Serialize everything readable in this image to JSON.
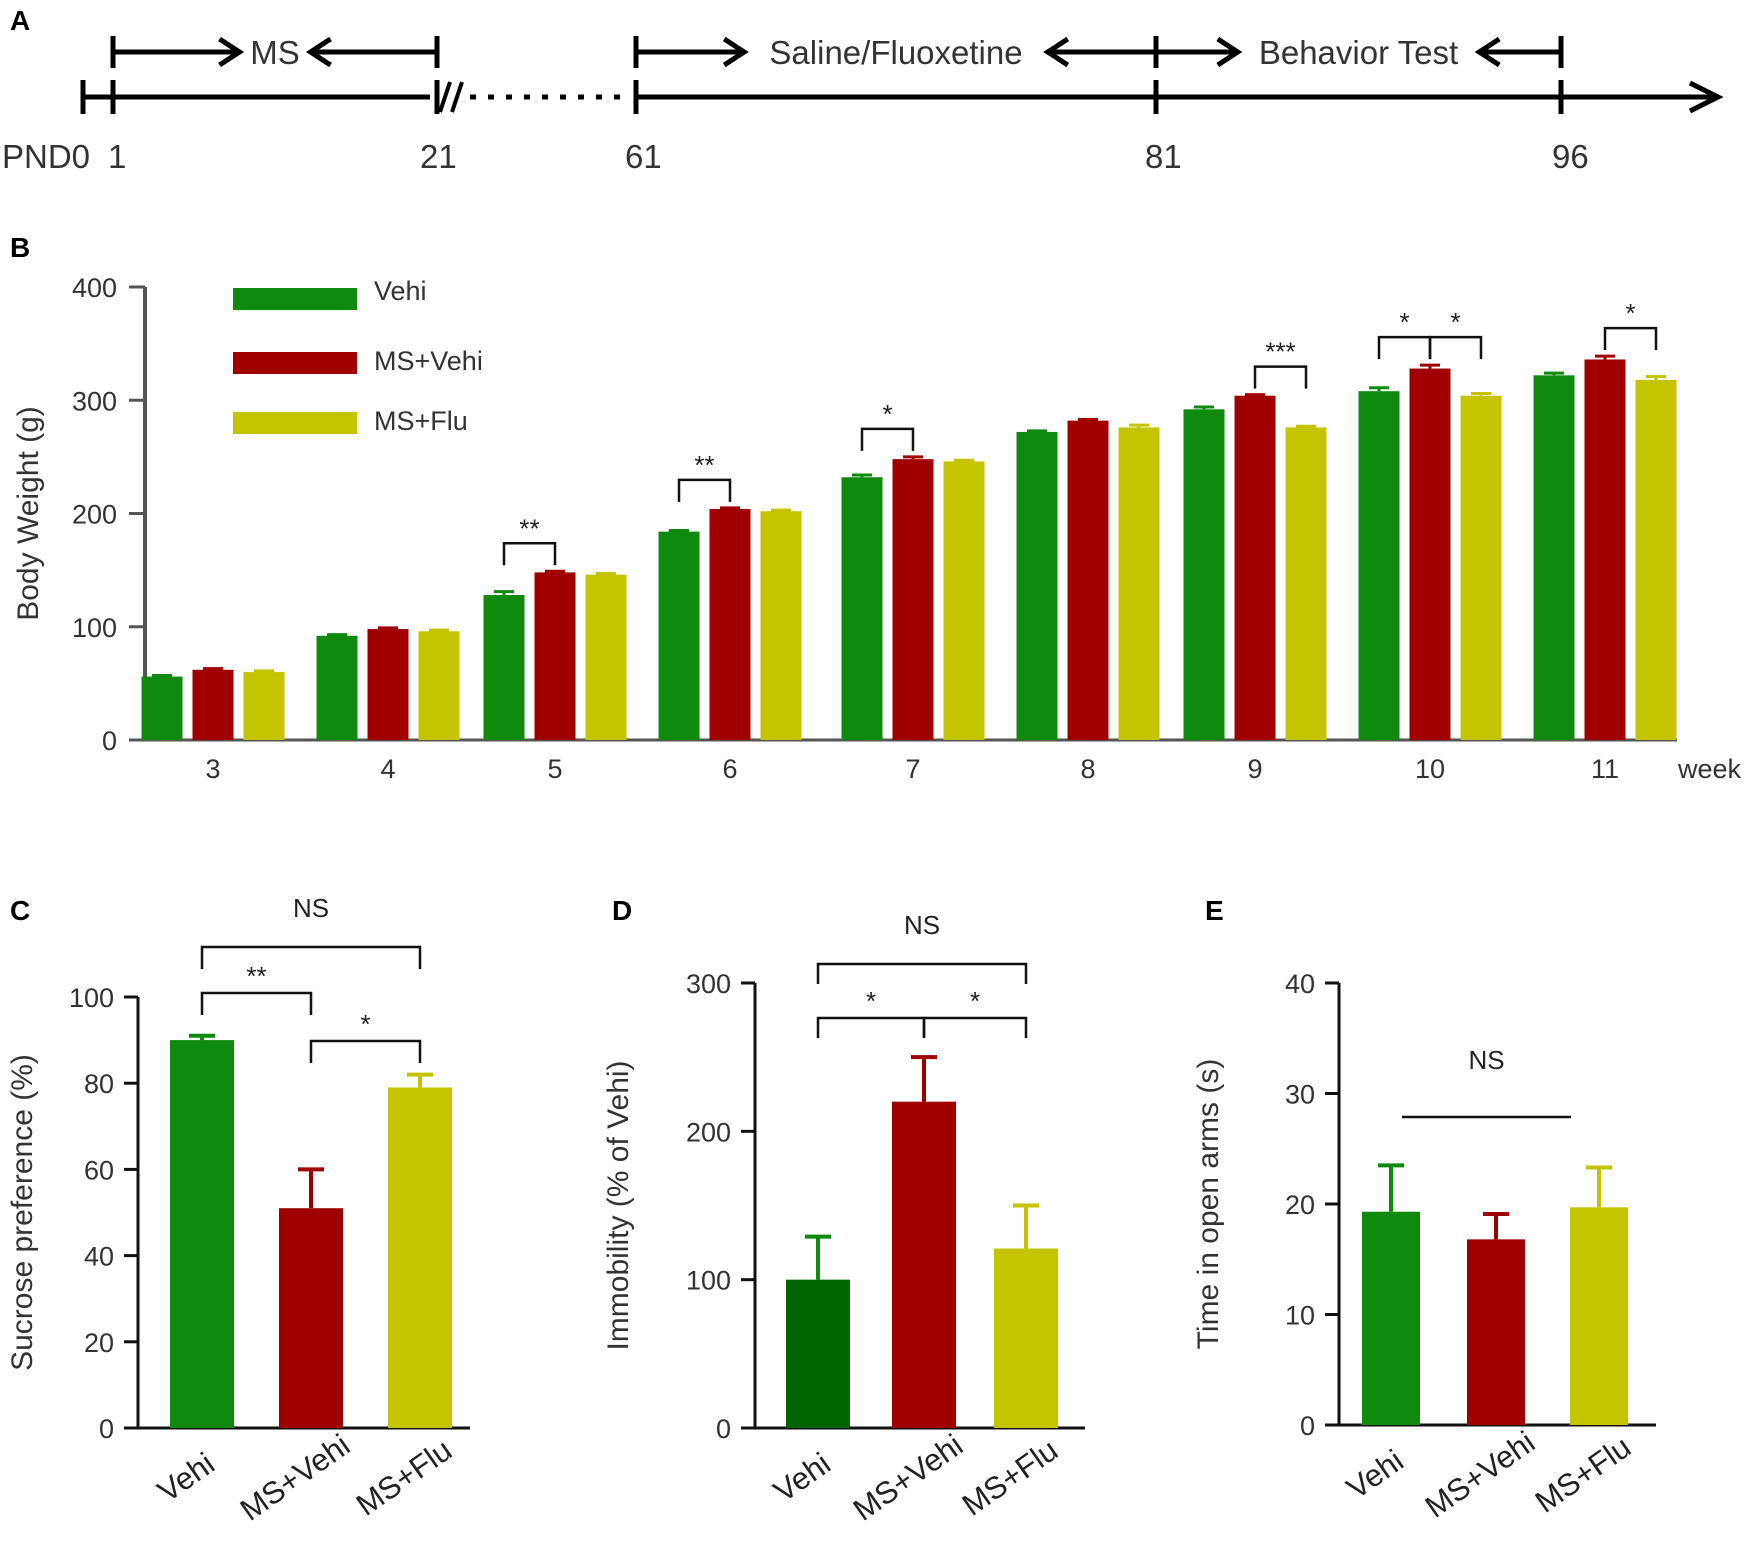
{
  "panels": {
    "A": "A",
    "B": "B",
    "C": "C",
    "D": "D",
    "E": "E"
  },
  "colors": {
    "vehi": "#0f8a0f",
    "ms_vehi": "#a00000",
    "ms_flu": "#c4c400",
    "vehi_dark": "#006400",
    "axis": "#000000"
  },
  "timeline": {
    "ticks": [
      {
        "label": "PND0",
        "day": 0
      },
      {
        "label": "1",
        "day": 1
      },
      {
        "label": "21",
        "day": 21
      },
      {
        "label": "61",
        "day": 61
      },
      {
        "label": "81",
        "day": 81
      },
      {
        "label": "96",
        "day": 96
      }
    ],
    "periods": [
      {
        "label": "MS",
        "start": 1,
        "end": 21
      },
      {
        "label": "Saline/Fluoxetine",
        "start": 61,
        "end": 81
      },
      {
        "label": "Behavior Test",
        "start": 81,
        "end": 96
      }
    ]
  },
  "chart_data": [
    {
      "panel": "B",
      "type": "bar",
      "ylabel": "Body Weight (g)",
      "xlabel": "week",
      "ylim": [
        0,
        400
      ],
      "yticks": [
        0,
        100,
        200,
        300,
        400
      ],
      "categories": [
        "3",
        "4",
        "5",
        "6",
        "7",
        "8",
        "9",
        "10",
        "11"
      ],
      "series": [
        {
          "name": "Vehi",
          "values": [
            56,
            92,
            128,
            184,
            232,
            272,
            292,
            308,
            322
          ],
          "errors": [
            1,
            1,
            3,
            1,
            2,
            1,
            2,
            3,
            2
          ]
        },
        {
          "name": "MS+Vehi",
          "values": [
            62,
            98,
            148,
            204,
            248,
            282,
            304,
            328,
            336
          ],
          "errors": [
            1,
            1,
            1,
            1,
            2,
            1,
            1,
            3,
            3
          ]
        },
        {
          "name": "MS+Flu",
          "values": [
            60,
            96,
            146,
            202,
            246,
            276,
            276,
            304,
            318
          ],
          "errors": [
            1,
            1,
            1,
            1,
            1,
            2,
            1,
            2,
            3
          ]
        }
      ],
      "significance": [
        {
          "category": "5",
          "from": "Vehi",
          "to": "MS+Vehi",
          "label": "**"
        },
        {
          "category": "6",
          "from": "Vehi",
          "to": "MS+Vehi",
          "label": "**"
        },
        {
          "category": "7",
          "from": "Vehi",
          "to": "MS+Vehi",
          "label": "*"
        },
        {
          "category": "9",
          "from": "MS+Vehi",
          "to": "MS+Flu",
          "label": "***"
        },
        {
          "category": "10",
          "from": "Vehi",
          "to": "MS+Vehi",
          "label": "*"
        },
        {
          "category": "10",
          "from": "MS+Vehi",
          "to": "MS+Flu",
          "label": "*"
        },
        {
          "category": "11",
          "from": "MS+Vehi",
          "to": "MS+Flu",
          "label": "*"
        }
      ]
    },
    {
      "panel": "C",
      "type": "bar",
      "ylabel": "Sucrose preference (%)",
      "ylim": [
        0,
        100
      ],
      "yticks": [
        0,
        20,
        40,
        60,
        80,
        100
      ],
      "categories": [
        "Vehi",
        "MS+Vehi",
        "MS+Flu"
      ],
      "values": [
        90,
        51,
        79
      ],
      "errors": [
        1,
        9,
        3
      ],
      "significance": [
        {
          "from": 0,
          "to": 2,
          "label": "NS"
        },
        {
          "from": 0,
          "to": 1,
          "label": "**"
        },
        {
          "from": 1,
          "to": 2,
          "label": "*"
        }
      ]
    },
    {
      "panel": "D",
      "type": "bar",
      "ylabel": "Immobility (% of Vehi)",
      "ylim": [
        0,
        300
      ],
      "yticks": [
        0,
        100,
        200,
        300
      ],
      "categories": [
        "Vehi",
        "MS+Vehi",
        "MS+Flu"
      ],
      "values": [
        100,
        220,
        121
      ],
      "errors": [
        29,
        30,
        29
      ],
      "significance": [
        {
          "from": 0,
          "to": 2,
          "label": "NS"
        },
        {
          "from": 0,
          "to": 1,
          "label": "*"
        },
        {
          "from": 1,
          "to": 2,
          "label": "*"
        }
      ]
    },
    {
      "panel": "E",
      "type": "bar",
      "ylabel": "Time in open arms (s)",
      "ylim": [
        0,
        40
      ],
      "yticks": [
        0,
        10,
        20,
        30,
        40
      ],
      "categories": [
        "Vehi",
        "MS+Vehi",
        "MS+Flu"
      ],
      "values": [
        19.3,
        16.8,
        19.7
      ],
      "errors": [
        4.2,
        2.3,
        3.6
      ],
      "significance": [
        {
          "from": 0,
          "to": 2,
          "label": "NS"
        }
      ]
    }
  ]
}
